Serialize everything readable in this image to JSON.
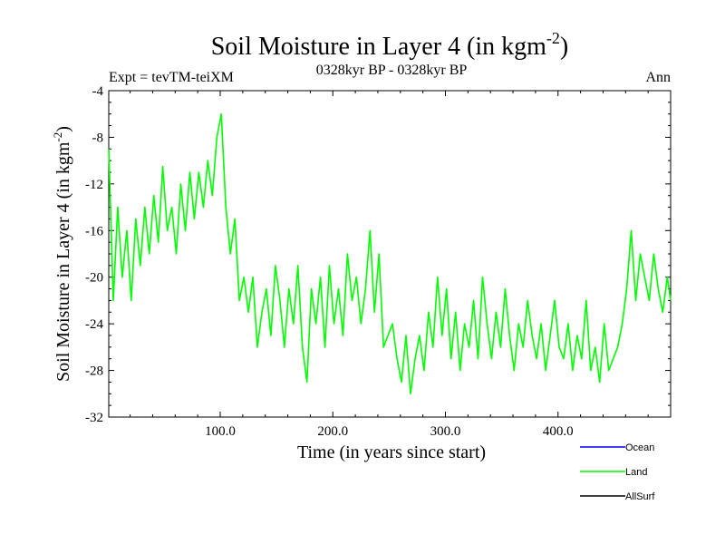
{
  "chart_data": {
    "type": "line",
    "title": "Soil Moisture in Layer 4 (in kgm",
    "title_superscript": "-2",
    "title_suffix": ")",
    "subtitle_left": "Expt = tevTM-teiXM",
    "subtitle_center": "0328kyr BP - 0328kyr BP",
    "subtitle_right": "Ann",
    "xlabel": "Time (in years since start)",
    "ylabel": "Soil Moisture in Layer 4 (in kgm",
    "ylabel_superscript": "-2",
    "ylabel_suffix": ")",
    "xlim": [
      1,
      500
    ],
    "ylim": [
      -32,
      -4
    ],
    "x_ticks": [
      {
        "value": 100,
        "label": "100.0"
      },
      {
        "value": 200,
        "label": "200.0"
      },
      {
        "value": 300,
        "label": "300.0"
      },
      {
        "value": 400,
        "label": "400.0"
      }
    ],
    "y_ticks": [
      {
        "value": -4,
        "label": "-4"
      },
      {
        "value": -8,
        "label": "-8"
      },
      {
        "value": -12,
        "label": "-12"
      },
      {
        "value": -16,
        "label": "-16"
      },
      {
        "value": -20,
        "label": "-20"
      },
      {
        "value": -24,
        "label": "-24"
      },
      {
        "value": -28,
        "label": "-28"
      },
      {
        "value": -32,
        "label": "-32"
      }
    ],
    "legend": [
      {
        "name": "Ocean",
        "color": "#0000ff"
      },
      {
        "name": "Land",
        "color": "#00ff00"
      },
      {
        "name": "AllSurf",
        "color": "#000000"
      }
    ],
    "legend_position": "bottom-right",
    "series": [
      {
        "name": "Land",
        "color": "#00ff00",
        "x": [
          1,
          5,
          9,
          13,
          17,
          21,
          25,
          29,
          33,
          37,
          41,
          45,
          49,
          53,
          57,
          61,
          65,
          69,
          73,
          77,
          81,
          85,
          89,
          93,
          97,
          101,
          105,
          109,
          113,
          117,
          121,
          125,
          129,
          133,
          137,
          141,
          145,
          149,
          153,
          157,
          161,
          165,
          169,
          173,
          177,
          181,
          185,
          189,
          193,
          197,
          201,
          205,
          209,
          213,
          217,
          221,
          225,
          229,
          233,
          237,
          241,
          245,
          249,
          253,
          257,
          261,
          265,
          269,
          273,
          277,
          281,
          285,
          289,
          293,
          297,
          301,
          305,
          309,
          313,
          317,
          321,
          325,
          329,
          333,
          337,
          341,
          345,
          349,
          353,
          357,
          361,
          365,
          369,
          373,
          377,
          381,
          385,
          389,
          393,
          397,
          401,
          405,
          409,
          413,
          417,
          421,
          425,
          429,
          433,
          437,
          441,
          445,
          449,
          453,
          457,
          461,
          465,
          469,
          473,
          477,
          481,
          485,
          489,
          493,
          497,
          500
        ],
        "values": [
          -9,
          -22,
          -14,
          -20,
          -16,
          -22,
          -15,
          -19,
          -14,
          -18,
          -13,
          -17,
          -10.5,
          -16,
          -14,
          -18,
          -12,
          -16,
          -11,
          -15,
          -11,
          -14,
          -10,
          -13,
          -8,
          -6,
          -14,
          -18,
          -15,
          -22,
          -20,
          -23,
          -20,
          -26,
          -23,
          -21,
          -25,
          -19,
          -22,
          -26,
          -21,
          -24,
          -19,
          -26,
          -29,
          -21,
          -24,
          -20,
          -26,
          -19,
          -24,
          -21,
          -25,
          -18,
          -22,
          -20,
          -24,
          -21,
          -16,
          -23,
          -18,
          -26,
          -25,
          -24,
          -27,
          -29,
          -25,
          -30,
          -27,
          -25,
          -28,
          -23,
          -26,
          -20,
          -25,
          -21,
          -27,
          -23,
          -28,
          -24,
          -26,
          -22,
          -27,
          -20,
          -24,
          -27,
          -23,
          -26,
          -21,
          -25,
          -28,
          -24,
          -26,
          -22,
          -25,
          -27,
          -24,
          -28,
          -25,
          -22,
          -26,
          -27,
          -24,
          -28,
          -25,
          -27,
          -22,
          -28,
          -26,
          -29,
          -24,
          -28,
          -27,
          -26,
          -24,
          -21,
          -16,
          -22,
          -18,
          -20,
          -22,
          -18,
          -21,
          -23,
          -20,
          -22
        ]
      }
    ]
  }
}
